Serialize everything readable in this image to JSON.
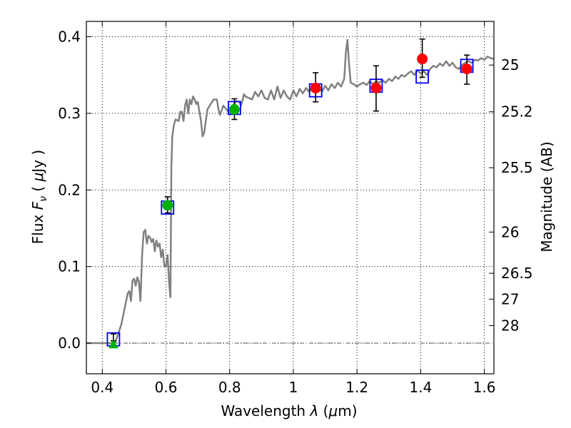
{
  "chart_data": {
    "type": "scatter",
    "xlabel": "Wavelength  λ (μm)",
    "ylabel": "Flux  F_ν  ( μJy )",
    "ylabel_parts": {
      "pre": "Flux  ",
      "f": "F",
      "nu": "ν",
      "mid": "  ( ",
      "mu": "μ",
      "post": "Jy )"
    },
    "xlabel_parts": {
      "pre": "Wavelength  ",
      "lam": "λ",
      "mid": " (",
      "mu": "μ",
      "post": "m)"
    },
    "y2label": "Magnitude (AB)",
    "xlim": [
      0.35,
      1.63
    ],
    "ylim": [
      -0.04,
      0.42
    ],
    "x_ticks": [
      0.4,
      0.6,
      0.8,
      1.0,
      1.2,
      1.4,
      1.6
    ],
    "x_tick_labels": [
      "0.4",
      "0.6",
      "0.8",
      "1",
      "1.2",
      "1.4",
      "1.6"
    ],
    "y_ticks": [
      0.0,
      0.1,
      0.2,
      0.3,
      0.4
    ],
    "y_tick_labels": [
      "0.0",
      "0.1",
      "0.2",
      "0.3",
      "0.4"
    ],
    "y2_ticks": [
      {
        "label": "25",
        "flux": 0.363
      },
      {
        "label": "25.2",
        "flux": 0.302
      },
      {
        "label": "25.5",
        "flux": 0.229
      },
      {
        "label": "26",
        "flux": 0.145
      },
      {
        "label": "26.5",
        "flux": 0.0912
      },
      {
        "label": "27",
        "flux": 0.0575
      },
      {
        "label": "28",
        "flux": 0.0229
      }
    ],
    "grid": true,
    "reference_line_y": 0.0,
    "colors": {
      "spectrum": "#808080",
      "model_square": "#0000ff",
      "green_points": "#00b000",
      "red_points": "#ff0000",
      "error_bar": "#000000"
    },
    "series": [
      {
        "kind": "line",
        "points": [
          [
            0.35,
            0.0
          ],
          [
            0.44,
            0.0
          ],
          [
            0.45,
            0.012
          ],
          [
            0.46,
            0.025
          ],
          [
            0.47,
            0.045
          ],
          [
            0.48,
            0.065
          ],
          [
            0.485,
            0.068
          ],
          [
            0.49,
            0.055
          ],
          [
            0.495,
            0.082
          ],
          [
            0.5,
            0.084
          ],
          [
            0.505,
            0.075
          ],
          [
            0.51,
            0.086
          ],
          [
            0.515,
            0.08
          ],
          [
            0.52,
            0.055
          ],
          [
            0.525,
            0.115
          ],
          [
            0.53,
            0.145
          ],
          [
            0.535,
            0.148
          ],
          [
            0.54,
            0.13
          ],
          [
            0.545,
            0.14
          ],
          [
            0.55,
            0.138
          ],
          [
            0.555,
            0.132
          ],
          [
            0.56,
            0.136
          ],
          [
            0.565,
            0.12
          ],
          [
            0.57,
            0.134
          ],
          [
            0.575,
            0.126
          ],
          [
            0.58,
            0.13
          ],
          [
            0.585,
            0.112
          ],
          [
            0.59,
            0.122
          ],
          [
            0.595,
            0.1
          ],
          [
            0.6,
            0.1
          ],
          [
            0.605,
            0.115
          ],
          [
            0.61,
            0.078
          ],
          [
            0.614,
            0.06
          ],
          [
            0.617,
            0.23
          ],
          [
            0.62,
            0.27
          ],
          [
            0.625,
            0.285
          ],
          [
            0.63,
            0.292
          ],
          [
            0.64,
            0.29
          ],
          [
            0.645,
            0.302
          ],
          [
            0.65,
            0.302
          ],
          [
            0.655,
            0.29
          ],
          [
            0.66,
            0.31
          ],
          [
            0.665,
            0.318
          ],
          [
            0.67,
            0.3
          ],
          [
            0.675,
            0.318
          ],
          [
            0.68,
            0.312
          ],
          [
            0.685,
            0.322
          ],
          [
            0.69,
            0.318
          ],
          [
            0.695,
            0.312
          ],
          [
            0.7,
            0.315
          ],
          [
            0.705,
            0.302
          ],
          [
            0.71,
            0.29
          ],
          [
            0.715,
            0.27
          ],
          [
            0.72,
            0.275
          ],
          [
            0.725,
            0.29
          ],
          [
            0.73,
            0.305
          ],
          [
            0.74,
            0.312
          ],
          [
            0.75,
            0.318
          ],
          [
            0.76,
            0.318
          ],
          [
            0.765,
            0.305
          ],
          [
            0.77,
            0.298
          ],
          [
            0.78,
            0.31
          ],
          [
            0.79,
            0.305
          ],
          [
            0.8,
            0.3
          ],
          [
            0.81,
            0.31
          ],
          [
            0.82,
            0.316
          ],
          [
            0.83,
            0.315
          ],
          [
            0.835,
            0.31
          ],
          [
            0.84,
            0.316
          ],
          [
            0.845,
            0.325
          ],
          [
            0.85,
            0.322
          ],
          [
            0.86,
            0.32
          ],
          [
            0.87,
            0.318
          ],
          [
            0.88,
            0.328
          ],
          [
            0.89,
            0.322
          ],
          [
            0.9,
            0.33
          ],
          [
            0.91,
            0.32
          ],
          [
            0.92,
            0.318
          ],
          [
            0.93,
            0.33
          ],
          [
            0.94,
            0.318
          ],
          [
            0.95,
            0.335
          ],
          [
            0.96,
            0.32
          ],
          [
            0.97,
            0.33
          ],
          [
            0.98,
            0.322
          ],
          [
            0.99,
            0.318
          ],
          [
            1.0,
            0.33
          ],
          [
            1.01,
            0.322
          ],
          [
            1.02,
            0.332
          ],
          [
            1.03,
            0.326
          ],
          [
            1.04,
            0.333
          ],
          [
            1.05,
            0.328
          ],
          [
            1.06,
            0.334
          ],
          [
            1.07,
            0.33
          ],
          [
            1.08,
            0.333
          ],
          [
            1.09,
            0.328
          ],
          [
            1.1,
            0.336
          ],
          [
            1.11,
            0.33
          ],
          [
            1.12,
            0.338
          ],
          [
            1.13,
            0.333
          ],
          [
            1.14,
            0.34
          ],
          [
            1.15,
            0.335
          ],
          [
            1.16,
            0.345
          ],
          [
            1.165,
            0.38
          ],
          [
            1.17,
            0.396
          ],
          [
            1.175,
            0.365
          ],
          [
            1.18,
            0.34
          ],
          [
            1.19,
            0.338
          ],
          [
            1.2,
            0.335
          ],
          [
            1.21,
            0.338
          ],
          [
            1.22,
            0.34
          ],
          [
            1.23,
            0.337
          ],
          [
            1.24,
            0.342
          ],
          [
            1.25,
            0.338
          ],
          [
            1.26,
            0.342
          ],
          [
            1.27,
            0.34
          ],
          [
            1.28,
            0.343
          ],
          [
            1.29,
            0.34
          ],
          [
            1.3,
            0.345
          ],
          [
            1.31,
            0.342
          ],
          [
            1.32,
            0.348
          ],
          [
            1.33,
            0.345
          ],
          [
            1.34,
            0.35
          ],
          [
            1.35,
            0.348
          ],
          [
            1.36,
            0.352
          ],
          [
            1.37,
            0.355
          ],
          [
            1.38,
            0.35
          ],
          [
            1.39,
            0.356
          ],
          [
            1.4,
            0.352
          ],
          [
            1.41,
            0.355
          ],
          [
            1.42,
            0.35
          ],
          [
            1.43,
            0.358
          ],
          [
            1.44,
            0.362
          ],
          [
            1.45,
            0.36
          ],
          [
            1.46,
            0.365
          ],
          [
            1.47,
            0.362
          ],
          [
            1.48,
            0.368
          ],
          [
            1.49,
            0.362
          ],
          [
            1.5,
            0.366
          ],
          [
            1.51,
            0.36
          ],
          [
            1.52,
            0.358
          ],
          [
            1.53,
            0.363
          ],
          [
            1.54,
            0.366
          ],
          [
            1.55,
            0.368
          ],
          [
            1.56,
            0.366
          ],
          [
            1.57,
            0.37
          ],
          [
            1.58,
            0.369
          ],
          [
            1.59,
            0.372
          ],
          [
            1.6,
            0.37
          ],
          [
            1.61,
            0.374
          ],
          [
            1.62,
            0.372
          ],
          [
            1.63,
            0.371
          ]
        ]
      },
      {
        "kind": "model_squares",
        "points": [
          [
            0.435,
            0.005
          ],
          [
            0.605,
            0.177
          ],
          [
            0.815,
            0.307
          ],
          [
            1.07,
            0.33
          ],
          [
            1.26,
            0.336
          ],
          [
            1.405,
            0.348
          ],
          [
            1.545,
            0.362
          ]
        ]
      },
      {
        "kind": "error_bars",
        "points": [
          [
            0.435,
            0.003,
            0.012
          ],
          [
            0.605,
            0.17,
            0.191
          ],
          [
            0.815,
            0.292,
            0.319
          ],
          [
            1.07,
            0.315,
            0.353
          ],
          [
            1.26,
            0.303,
            0.362
          ],
          [
            1.405,
            0.347,
            0.397
          ],
          [
            1.545,
            0.338,
            0.376
          ]
        ]
      },
      {
        "kind": "green_circles",
        "points": [
          [
            0.605,
            0.18
          ],
          [
            0.815,
            0.305
          ]
        ]
      },
      {
        "kind": "green_triangle",
        "points": [
          [
            0.435,
            -0.002
          ]
        ]
      },
      {
        "kind": "red_circles",
        "points": [
          [
            1.07,
            0.333
          ],
          [
            1.26,
            0.333
          ],
          [
            1.405,
            0.371
          ],
          [
            1.545,
            0.358
          ]
        ]
      }
    ]
  }
}
